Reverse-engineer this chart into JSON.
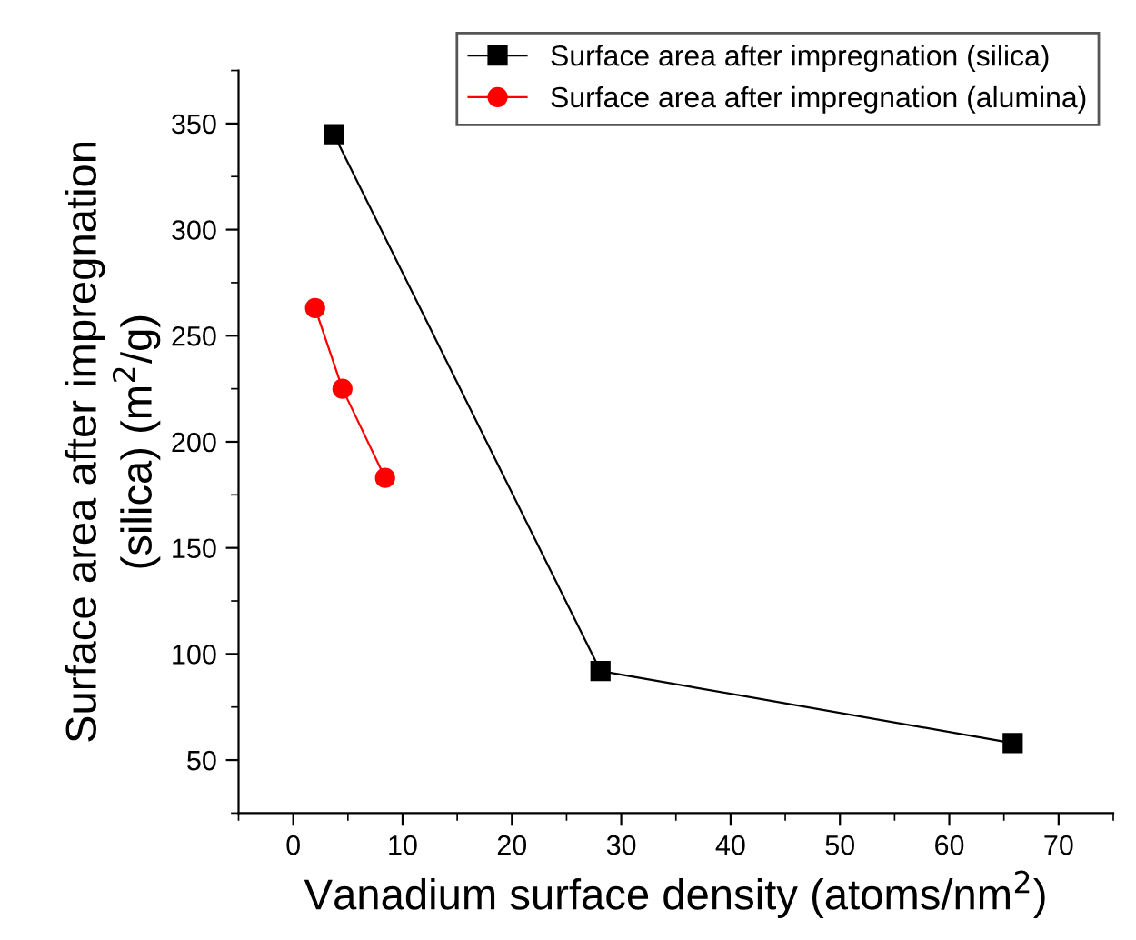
{
  "chart_data": {
    "type": "line",
    "xlabel": "Vanadium surface density (atoms/nm$^{2}$)",
    "ylabel": "Surface area after impregnation\n(silica) (m$^{2}$/g)",
    "series": [
      {
        "name": "Surface area after impregnation (silica)",
        "color": "#000000",
        "marker": "square",
        "x": [
          3.7,
          28.1,
          65.8
        ],
        "values": [
          345,
          92,
          58
        ]
      },
      {
        "name": "Surface area after impregnation (alumina)",
        "color": "#ff0000",
        "marker": "circle",
        "x": [
          2.0,
          4.5,
          8.4
        ],
        "values": [
          263,
          225,
          183
        ]
      }
    ],
    "xlim": [
      -5,
      75
    ],
    "xticks": [
      0,
      10,
      20,
      30,
      40,
      50,
      60,
      70
    ],
    "ylim": [
      25,
      375
    ],
    "yticks": [
      50,
      100,
      150,
      200,
      250,
      300,
      350
    ],
    "grid": false,
    "legend": "top right",
    "line_style": "solid"
  }
}
